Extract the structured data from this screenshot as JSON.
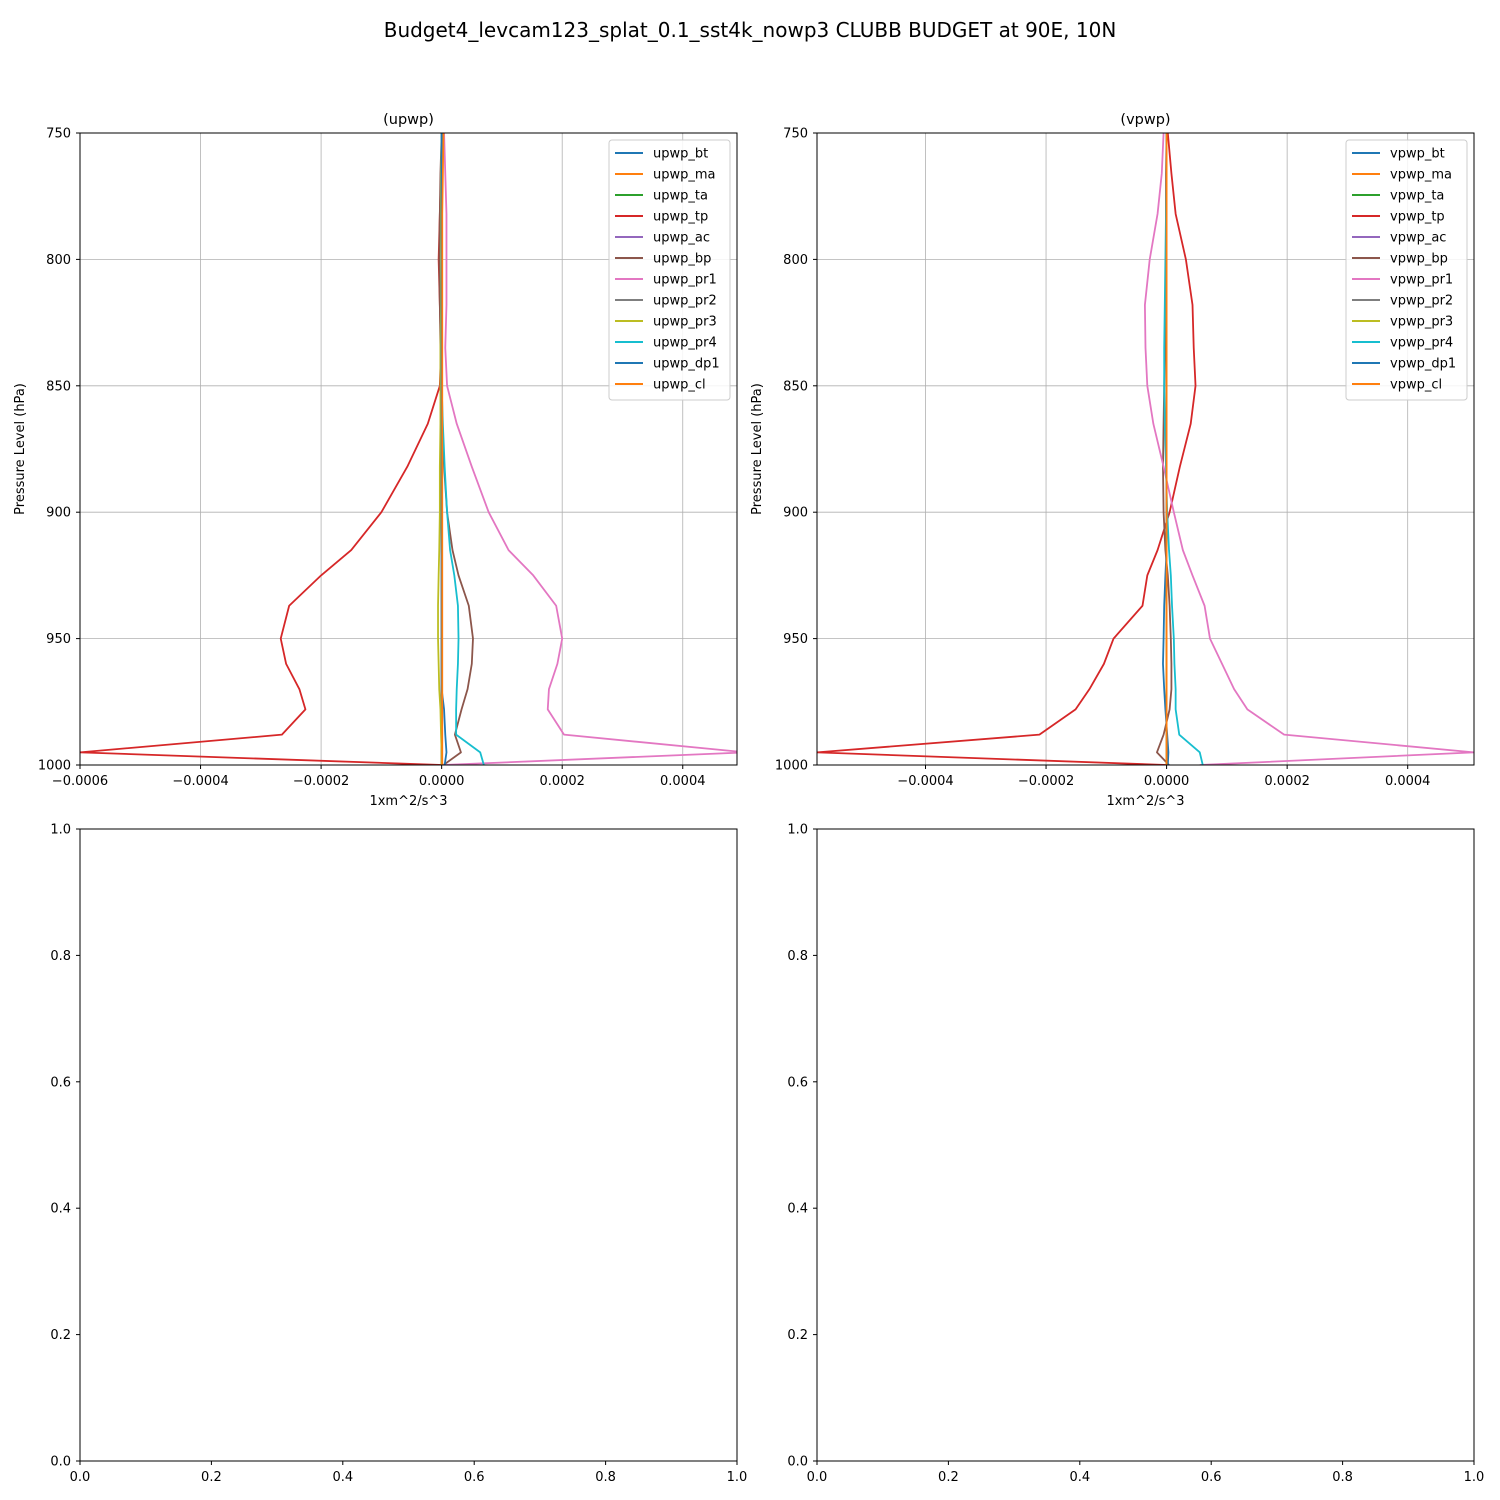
{
  "figure": {
    "title": "Budget4_levcam123_splat_0.1_sst4k_nowp3 CLUBB BUDGET at 90E, 10N"
  },
  "colors": [
    "#1f77b4",
    "#ff7f0e",
    "#2ca02c",
    "#d62728",
    "#9467bd",
    "#8c564b",
    "#e377c2",
    "#7f7f7f",
    "#bcbd22",
    "#17becf",
    "#1f77b4",
    "#ff7f0e"
  ],
  "chart_data": [
    {
      "type": "line",
      "title": "(upwp)",
      "xlabel": "1xm^2/s^3",
      "ylabel": "Pressure Level (hPa)",
      "xlim": [
        -0.0006,
        0.00049
      ],
      "ylim": [
        1000,
        750
      ],
      "y_inverted": true,
      "grid": true,
      "legend": "top-right",
      "xticks": [
        -0.0006,
        -0.0004,
        -0.0002,
        0.0,
        0.0002,
        0.0004
      ],
      "xtick_labels": [
        "−0.0006",
        "−0.0004",
        "−0.0002",
        "0.0000",
        "0.0002",
        "0.0004"
      ],
      "yticks": [
        750,
        800,
        850,
        900,
        950,
        1000
      ],
      "ytick_labels": [
        "750",
        "800",
        "850",
        "900",
        "950",
        "1000"
      ],
      "levels": [
        750,
        766,
        782,
        800,
        818,
        835,
        850,
        865,
        882,
        900,
        915,
        925,
        937,
        950,
        960,
        970,
        978,
        988,
        995,
        1000
      ],
      "series": [
        {
          "name": "upwp_bt",
          "values": [
            0,
            0,
            0,
            0,
            0,
            0,
            0,
            0,
            0,
            0,
            0,
            0,
            0,
            0,
            0,
            0,
            0,
            0,
            0,
            0
          ]
        },
        {
          "name": "upwp_ma",
          "values": [
            0,
            0,
            0,
            0,
            0,
            0,
            0,
            0,
            0,
            0,
            0,
            0,
            0,
            0,
            0,
            0,
            0,
            0,
            0,
            0
          ]
        },
        {
          "name": "upwp_ta",
          "values": [
            0,
            0,
            0,
            0,
            0,
            0,
            0,
            0,
            0,
            0,
            0,
            0,
            0,
            0,
            0,
            0,
            0,
            0,
            0,
            0
          ]
        },
        {
          "name": "upwp_tp",
          "values": [
            1e-06,
            -1e-06,
            -3e-06,
            -5e-06,
            -3e-06,
            -1e-06,
            -3e-06,
            -2.3e-05,
            -5.7e-05,
            -0.0001,
            -0.00015,
            -0.0002,
            -0.000253,
            -0.000267,
            -0.000258,
            -0.000236,
            -0.000226,
            -0.000265,
            -0.0006,
            1e-06
          ]
        },
        {
          "name": "upwp_ac",
          "values": [
            0,
            0,
            0,
            0,
            0,
            0,
            0,
            0,
            0,
            0,
            0,
            0,
            0,
            0,
            0,
            0,
            0,
            0,
            0,
            0
          ]
        },
        {
          "name": "upwp_bp",
          "values": [
            0,
            -2e-06,
            -3e-06,
            -4e-06,
            -3e-06,
            -2e-06,
            -1e-06,
            1e-06,
            4e-06,
            9e-06,
            1.8e-05,
            2.8e-05,
            4.5e-05,
            5.2e-05,
            5e-05,
            4.3e-05,
            3.3e-05,
            2.2e-05,
            3.2e-05,
            3e-06
          ]
        },
        {
          "name": "upwp_pr1",
          "values": [
            4e-06,
            6e-06,
            8e-06,
            8e-06,
            8e-06,
            6e-06,
            9e-06,
            2.5e-05,
            5e-05,
            7.8e-05,
            0.000111,
            0.000152,
            0.00019,
            0.0002,
            0.000192,
            0.000178,
            0.000176,
            0.000203,
            0.000505,
            2e-06
          ]
        },
        {
          "name": "upwp_pr2",
          "values": [
            0,
            0,
            0,
            0,
            0,
            0,
            0,
            0,
            0,
            0,
            0,
            0,
            0,
            0,
            0,
            0,
            0,
            0,
            0,
            0
          ]
        },
        {
          "name": "upwp_pr3",
          "values": [
            0,
            -1e-06,
            -1e-06,
            -1e-06,
            -1e-06,
            -2e-06,
            -2e-06,
            -2e-06,
            -3e-06,
            -3e-06,
            -4e-06,
            -5e-06,
            -6e-06,
            -6e-06,
            -5e-06,
            -4e-06,
            -2e-06,
            -1e-06,
            0,
            0
          ]
        },
        {
          "name": "upwp_pr4",
          "values": [
            0,
            0,
            0,
            0,
            0,
            0,
            0,
            2e-06,
            5e-06,
            9e-06,
            1.4e-05,
            2.1e-05,
            2.7e-05,
            2.8e-05,
            2.7e-05,
            2.5e-05,
            2.4e-05,
            2.4e-05,
            6.4e-05,
            7e-05
          ]
        },
        {
          "name": "upwp_dp1",
          "values": [
            0,
            0,
            0,
            0,
            0,
            0,
            0,
            0,
            0,
            0,
            0,
            0,
            0,
            0,
            0,
            0,
            4e-06,
            6e-06,
            8e-06,
            5e-06
          ]
        },
        {
          "name": "upwp_cl",
          "values": [
            3e-06,
            2e-06,
            1e-06,
            1e-06,
            1e-06,
            1e-06,
            1e-06,
            1e-06,
            1e-06,
            1e-06,
            1e-06,
            1e-06,
            1e-06,
            1e-06,
            1e-06,
            1e-06,
            1e-06,
            1e-06,
            1e-06,
            1e-06
          ]
        }
      ]
    },
    {
      "type": "line",
      "title": "(vpwp)",
      "xlabel": "1xm^2/s^3",
      "ylabel": "Pressure Level (hPa)",
      "xlim": [
        -0.00058,
        0.00051
      ],
      "ylim": [
        1000,
        750
      ],
      "y_inverted": true,
      "grid": true,
      "legend": "top-right",
      "xticks": [
        -0.0004,
        -0.0002,
        0.0,
        0.0002,
        0.0004
      ],
      "xtick_labels": [
        "−0.0004",
        "−0.0002",
        "0.0000",
        "0.0002",
        "0.0004"
      ],
      "yticks": [
        750,
        800,
        850,
        900,
        950,
        1000
      ],
      "ytick_labels": [
        "750",
        "800",
        "850",
        "900",
        "950",
        "1000"
      ],
      "levels": [
        750,
        766,
        782,
        800,
        818,
        835,
        850,
        865,
        882,
        900,
        915,
        925,
        937,
        950,
        960,
        970,
        978,
        988,
        995,
        1000
      ],
      "series": [
        {
          "name": "vpwp_bt",
          "values": [
            0,
            0,
            0,
            0,
            0,
            0,
            0,
            0,
            0,
            0,
            0,
            0,
            0,
            0,
            0,
            0,
            0,
            0,
            0,
            0
          ]
        },
        {
          "name": "vpwp_ma",
          "values": [
            0,
            0,
            0,
            0,
            0,
            0,
            0,
            0,
            0,
            0,
            0,
            0,
            0,
            0,
            0,
            0,
            0,
            0,
            0,
            0
          ]
        },
        {
          "name": "vpwp_ta",
          "values": [
            0,
            0,
            0,
            0,
            0,
            0,
            0,
            0,
            0,
            0,
            0,
            0,
            0,
            0,
            0,
            0,
            0,
            0,
            0,
            0
          ]
        },
        {
          "name": "vpwp_tp",
          "values": [
            2e-06,
            8e-06,
            1.5e-05,
            3.2e-05,
            4.3e-05,
            4.5e-05,
            4.8e-05,
            4e-05,
            2.2e-05,
            5e-06,
            -1.5e-05,
            -3.2e-05,
            -4e-05,
            -8.8e-05,
            -0.000104,
            -0.000128,
            -0.000151,
            -0.000211,
            -0.00058,
            0
          ]
        },
        {
          "name": "vpwp_ac",
          "values": [
            0,
            0,
            0,
            0,
            0,
            0,
            0,
            0,
            0,
            0,
            0,
            0,
            0,
            0,
            0,
            0,
            0,
            0,
            0,
            0
          ]
        },
        {
          "name": "vpwp_bp",
          "values": [
            0,
            -1e-06,
            -1e-06,
            -1e-06,
            -2e-06,
            -3e-06,
            -4e-06,
            -5e-06,
            -6e-06,
            -5e-06,
            -2e-06,
            2e-06,
            5e-06,
            7e-06,
            8e-06,
            8e-06,
            5e-06,
            -5e-06,
            -1.6e-05,
            4e-06
          ]
        },
        {
          "name": "vpwp_pr1",
          "values": [
            -5e-06,
            -8e-06,
            -1.5e-05,
            -2.8e-05,
            -3.6e-05,
            -3.5e-05,
            -3.2e-05,
            -2.2e-05,
            -5e-06,
            1.2e-05,
            2.7e-05,
            4.3e-05,
            6.3e-05,
            7.2e-05,
            9.2e-05,
            0.000112,
            0.000134,
            0.000195,
            0.00051,
            5.5e-05
          ]
        },
        {
          "name": "vpwp_pr2",
          "values": [
            0,
            0,
            0,
            0,
            0,
            0,
            0,
            0,
            0,
            0,
            0,
            0,
            0,
            0,
            0,
            0,
            0,
            0,
            0,
            0
          ]
        },
        {
          "name": "vpwp_pr3",
          "values": [
            0,
            0,
            0,
            0,
            0,
            0,
            0,
            0,
            0,
            0,
            0,
            0,
            0,
            0,
            0,
            0,
            0,
            0,
            0,
            0
          ]
        },
        {
          "name": "vpwp_pr4",
          "values": [
            0,
            0,
            -1e-06,
            -2e-06,
            -3e-06,
            -4e-06,
            -4e-06,
            -3e-06,
            -1e-06,
            1e-06,
            4e-06,
            7e-06,
            9e-06,
            1.2e-05,
            1.3e-05,
            1.5e-05,
            1.5e-05,
            2.1e-05,
            5.5e-05,
            6e-05
          ]
        },
        {
          "name": "vpwp_dp1",
          "values": [
            0,
            0,
            0,
            0,
            0,
            0,
            0,
            0,
            0,
            0,
            0,
            -2e-06,
            -4e-06,
            -5e-06,
            -6e-06,
            -4e-06,
            -2e-06,
            1e-06,
            3e-06,
            2e-06
          ]
        },
        {
          "name": "vpwp_cl",
          "values": [
            0,
            0,
            0,
            0,
            0,
            0,
            0,
            0,
            0,
            0,
            0,
            0,
            0,
            0,
            0,
            0,
            0,
            0,
            0,
            0
          ]
        }
      ]
    },
    {
      "type": "line",
      "title": "",
      "xlim": [
        0,
        1
      ],
      "ylim": [
        0,
        1
      ],
      "grid": false,
      "xticks": [
        0.0,
        0.2,
        0.4,
        0.6,
        0.8,
        1.0
      ],
      "xtick_labels": [
        "0.0",
        "0.2",
        "0.4",
        "0.6",
        "0.8",
        "1.0"
      ],
      "yticks": [
        0.0,
        0.2,
        0.4,
        0.6,
        0.8,
        1.0
      ],
      "ytick_labels": [
        "0.0",
        "0.2",
        "0.4",
        "0.6",
        "0.8",
        "1.0"
      ],
      "series": []
    },
    {
      "type": "line",
      "title": "",
      "xlim": [
        0,
        1
      ],
      "ylim": [
        0,
        1
      ],
      "grid": false,
      "xticks": [
        0.0,
        0.2,
        0.4,
        0.6,
        0.8,
        1.0
      ],
      "xtick_labels": [
        "0.0",
        "0.2",
        "0.4",
        "0.6",
        "0.8",
        "1.0"
      ],
      "yticks": [
        0.0,
        0.2,
        0.4,
        0.6,
        0.8,
        1.0
      ],
      "ytick_labels": [
        "0.0",
        "0.2",
        "0.4",
        "0.6",
        "0.8",
        "1.0"
      ],
      "series": []
    }
  ]
}
